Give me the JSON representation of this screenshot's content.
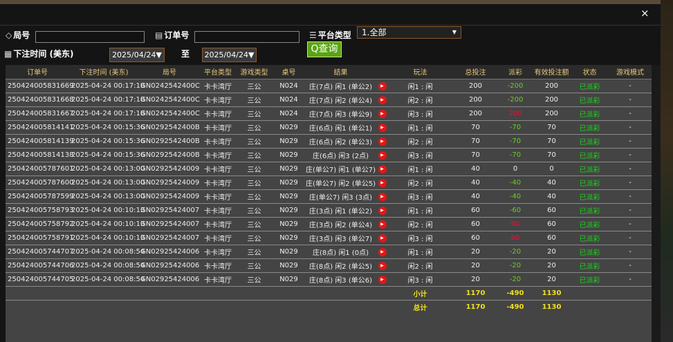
{
  "filters": {
    "round_label": "局号",
    "round_value": "",
    "order_label": "订单号",
    "order_value": "",
    "platform_label": "平台类型",
    "platform_value": "1.全部",
    "time_label": "下注时间 (美东)",
    "date_from": "2025/04/24",
    "to_label": "至",
    "date_to": "2025/04/24",
    "query_label": "查询"
  },
  "close": "×",
  "headers": [
    "订单号",
    "下注时间 (美东)",
    "局号",
    "平台类型",
    "游戏类型",
    "桌号",
    "结果",
    "",
    "玩法",
    "总投注",
    "派彩",
    "有效投注额",
    "状态",
    "游戏模式"
  ],
  "rows": [
    [
      "250424005831669",
      "2025-04-24 00:17:18",
      "GN0242542400C",
      "卡卡湾厅",
      "三公",
      "N024",
      "庄(7点) 闲1 (单公2)",
      "闲1 : 闲",
      "200",
      "-200",
      "200",
      "已派彩",
      "-"
    ],
    [
      "250424005831668",
      "2025-04-24 00:17:18",
      "GN0242542400C",
      "卡卡湾厅",
      "三公",
      "N024",
      "庄(7点) 闲2 (单公4)",
      "闲2 : 闲",
      "200",
      "-200",
      "200",
      "已派彩",
      "-"
    ],
    [
      "250424005831667",
      "2025-04-24 00:17:18",
      "GN0242542400C",
      "卡卡湾厅",
      "三公",
      "N024",
      "庄(7点) 闲3 (单公9)",
      "闲3 : 闲",
      "200",
      "200",
      "200",
      "已派彩",
      "-"
    ],
    [
      "250424005814141",
      "2025-04-24 00:15:36",
      "GN0292542400B",
      "卡卡湾厅",
      "三公",
      "N029",
      "庄(6点) 闲1 (单公1)",
      "闲1 : 闲",
      "70",
      "-70",
      "70",
      "已派彩",
      "-"
    ],
    [
      "250424005814139",
      "2025-04-24 00:15:36",
      "GN0292542400B",
      "卡卡湾厅",
      "三公",
      "N029",
      "庄(6点) 闲2 (单公3)",
      "闲2 : 闲",
      "70",
      "-70",
      "70",
      "已派彩",
      "-"
    ],
    [
      "250424005814138",
      "2025-04-24 00:15:36",
      "GN0292542400B",
      "卡卡湾厅",
      "三公",
      "N029",
      "庄(6点) 闲3 (2点)",
      "闲3 : 闲",
      "70",
      "-70",
      "70",
      "已派彩",
      "-"
    ],
    [
      "250424005787601",
      "2025-04-24 00:13:00",
      "GN02925424009",
      "卡卡湾厅",
      "三公",
      "N029",
      "庄(单公7) 闲1 (单公7)",
      "闲1 : 闲",
      "40",
      "0",
      "0",
      "已派彩",
      "-"
    ],
    [
      "250424005787600",
      "2025-04-24 00:13:00",
      "GN02925424009",
      "卡卡湾厅",
      "三公",
      "N029",
      "庄(单公7) 闲2 (单公5)",
      "闲2 : 闲",
      "40",
      "-40",
      "40",
      "已派彩",
      "-"
    ],
    [
      "250424005787599",
      "2025-04-24 00:13:00",
      "GN02925424009",
      "卡卡湾厅",
      "三公",
      "N029",
      "庄(单公7) 闲3 (3点)",
      "闲3 : 闲",
      "40",
      "-40",
      "40",
      "已派彩",
      "-"
    ],
    [
      "250424005758793",
      "2025-04-24 00:10:13",
      "GN02925424007",
      "卡卡湾厅",
      "三公",
      "N029",
      "庄(3点) 闲1 (单公2)",
      "闲1 : 闲",
      "60",
      "-60",
      "60",
      "已派彩",
      "-"
    ],
    [
      "250424005758792",
      "2025-04-24 00:10:13",
      "GN02925424007",
      "卡卡湾厅",
      "三公",
      "N029",
      "庄(3点) 闲2 (单公4)",
      "闲2 : 闲",
      "60",
      "60",
      "60",
      "已派彩",
      "-"
    ],
    [
      "250424005758791",
      "2025-04-24 00:10:13",
      "GN02925424007",
      "卡卡湾厅",
      "三公",
      "N029",
      "庄(3点) 闲3 (单公7)",
      "闲3 : 闲",
      "60",
      "60",
      "60",
      "已派彩",
      "-"
    ],
    [
      "250424005744707",
      "2025-04-24 00:08:54",
      "GN02925424006",
      "卡卡湾厅",
      "三公",
      "N029",
      "庄(8点) 闲1 (0点)",
      "闲1 : 闲",
      "20",
      "-20",
      "20",
      "已派彩",
      "-"
    ],
    [
      "250424005744706",
      "2025-04-24 00:08:54",
      "GN02925424006",
      "卡卡湾厅",
      "三公",
      "N029",
      "庄(8点) 闲2 (单公5)",
      "闲2 : 闲",
      "20",
      "-20",
      "20",
      "已派彩",
      "-"
    ],
    [
      "250424005744705",
      "2025-04-24 00:08:54",
      "GN02925424006",
      "卡卡湾厅",
      "三公",
      "N029",
      "庄(8点) 闲3 (单公6)",
      "闲3 : 闲",
      "20",
      "-20",
      "20",
      "已派彩",
      "-"
    ]
  ],
  "subtotal": {
    "label": "小计",
    "total_bet": "1170",
    "payout": "-490",
    "valid_bet": "1130"
  },
  "total": {
    "label": "总计",
    "total_bet": "1170",
    "payout": "-490",
    "valid_bet": "1130"
  },
  "colors": {
    "loss": "#66d11c",
    "win": "#e0153c",
    "status": "#18d818",
    "header": "#e8c87a",
    "sum": "#f0e020",
    "query": "#5aa414"
  }
}
